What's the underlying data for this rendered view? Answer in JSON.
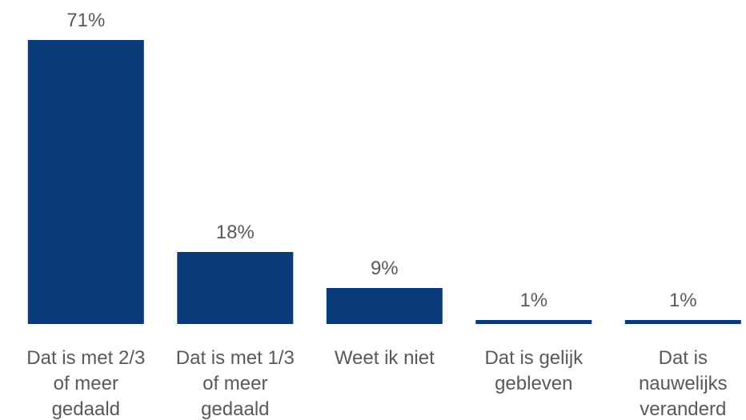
{
  "chart_data": {
    "type": "bar",
    "categories": [
      [
        "Dat is met 2/3",
        "of meer",
        "gedaald"
      ],
      [
        "Dat is met 1/3",
        "of meer",
        "gedaald"
      ],
      [
        "Weet ik niet"
      ],
      [
        "Dat is gelijk",
        "gebleven"
      ],
      [
        "Dat is",
        "nauwelijks",
        "veranderd"
      ]
    ],
    "values": [
      71,
      18,
      9,
      1,
      1
    ],
    "value_labels": [
      "71%",
      "18%",
      "9%",
      "1%",
      "1%"
    ],
    "ylim": [
      0,
      71
    ],
    "grid": false,
    "legend": "none",
    "colors": {
      "bar": "#0b3a7a",
      "text": "#595959"
    }
  }
}
